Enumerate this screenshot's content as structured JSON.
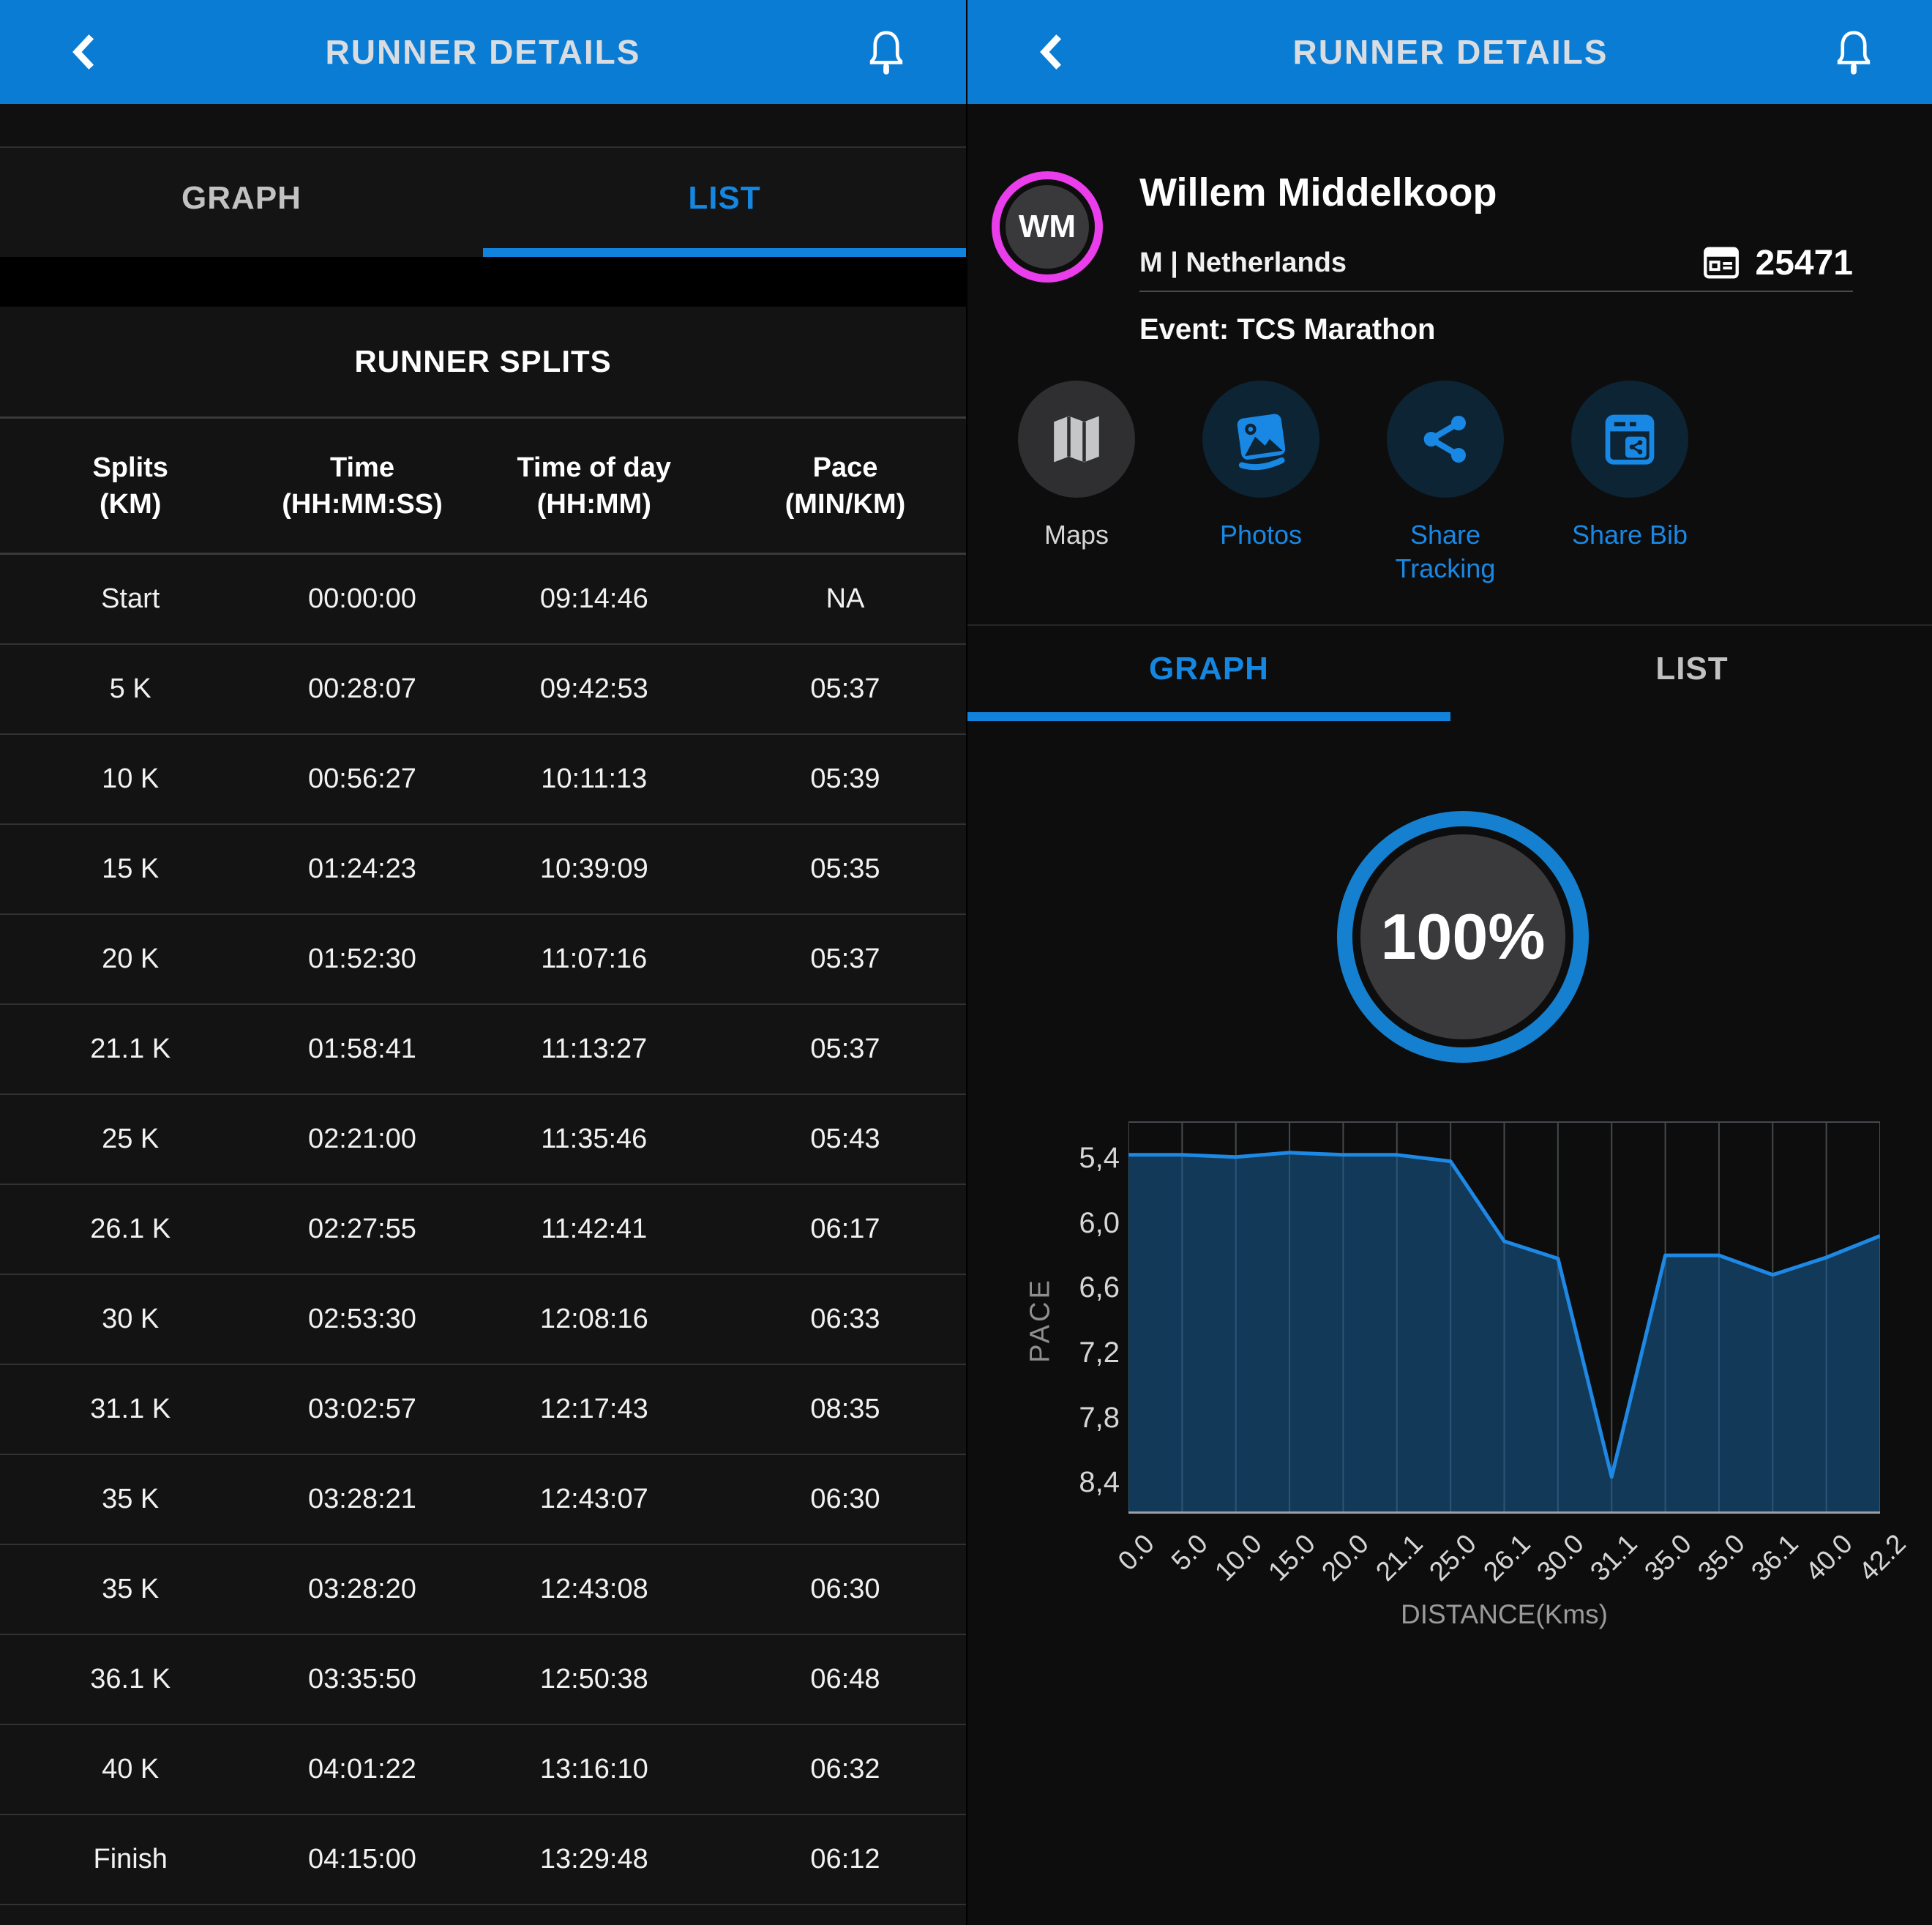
{
  "header": {
    "title": "RUNNER DETAILS"
  },
  "left": {
    "tabs": {
      "graph": "GRAPH",
      "list": "LIST",
      "active": "LIST"
    },
    "splits": {
      "title": "RUNNER SPLITS",
      "columns": [
        [
          "Splits",
          "(KM)"
        ],
        [
          "Time",
          "(HH:MM:SS)"
        ],
        [
          "Time of day",
          "(HH:MM)"
        ],
        [
          "Pace",
          "(MIN/KM)"
        ]
      ],
      "rows": [
        [
          "Start",
          "00:00:00",
          "09:14:46",
          "NA"
        ],
        [
          "5 K",
          "00:28:07",
          "09:42:53",
          "05:37"
        ],
        [
          "10 K",
          "00:56:27",
          "10:11:13",
          "05:39"
        ],
        [
          "15 K",
          "01:24:23",
          "10:39:09",
          "05:35"
        ],
        [
          "20 K",
          "01:52:30",
          "11:07:16",
          "05:37"
        ],
        [
          "21.1 K",
          "01:58:41",
          "11:13:27",
          "05:37"
        ],
        [
          "25 K",
          "02:21:00",
          "11:35:46",
          "05:43"
        ],
        [
          "26.1 K",
          "02:27:55",
          "11:42:41",
          "06:17"
        ],
        [
          "30 K",
          "02:53:30",
          "12:08:16",
          "06:33"
        ],
        [
          "31.1 K",
          "03:02:57",
          "12:17:43",
          "08:35"
        ],
        [
          "35 K",
          "03:28:21",
          "12:43:07",
          "06:30"
        ],
        [
          "35 K",
          "03:28:20",
          "12:43:08",
          "06:30"
        ],
        [
          "36.1 K",
          "03:35:50",
          "12:50:38",
          "06:48"
        ],
        [
          "40 K",
          "04:01:22",
          "13:16:10",
          "06:32"
        ],
        [
          "Finish",
          "04:15:00",
          "13:29:48",
          "06:12"
        ]
      ]
    }
  },
  "right": {
    "runner": {
      "initials": "WM",
      "name": "Willem Middelkoop",
      "gender_country": "M | Netherlands",
      "bib": "25471",
      "event": "Event: TCS Marathon"
    },
    "actions": [
      {
        "label": "Maps",
        "icon": "map-icon",
        "style": "gray"
      },
      {
        "label": "Photos",
        "icon": "photos-icon",
        "style": "blue"
      },
      {
        "label": "Share Tracking",
        "icon": "share-icon",
        "style": "blue"
      },
      {
        "label": "Share Bib",
        "icon": "share-bib-icon",
        "style": "blue"
      }
    ],
    "tabs": {
      "graph": "GRAPH",
      "list": "LIST",
      "active": "GRAPH"
    },
    "progress": {
      "value": "100%"
    }
  },
  "chart_data": {
    "type": "area",
    "title": "",
    "xlabel": "DISTANCE(Kms)",
    "ylabel": "PACE",
    "x_axis_type": "categorical-even",
    "x_ticks": [
      "0.0",
      "5.0",
      "10.0",
      "15.0",
      "20.0",
      "21.1",
      "25.0",
      "26.1",
      "30.0",
      "31.1",
      "35.0",
      "35.0",
      "36.1",
      "40.0",
      "42.2"
    ],
    "values": [
      5.37,
      5.37,
      5.39,
      5.35,
      5.37,
      5.37,
      5.43,
      6.17,
      6.33,
      8.35,
      6.3,
      6.3,
      6.48,
      6.32,
      6.12
    ],
    "y_ticks": [
      "5,4",
      "6,0",
      "6,6",
      "7,2",
      "7,8",
      "8,4"
    ],
    "y_tick_values": [
      5.4,
      6.0,
      6.6,
      7.2,
      7.8,
      8.4
    ],
    "y_domain": [
      5.06,
      8.69
    ],
    "y_inverted": true,
    "grid": "vertical",
    "legend": "none",
    "line_color": "#1e88e5",
    "fill_color": "rgba(23,94,152,0.55)",
    "grid_color": "#45494d",
    "axis_color": "#9aa0a5"
  },
  "colors": {
    "header_blue": "#0b7cd4",
    "accent_blue": "#1687e0",
    "avatar_ring_magenta": "#ea3deb",
    "panel_dark": "#131313",
    "divider": "#3a3a3a"
  }
}
